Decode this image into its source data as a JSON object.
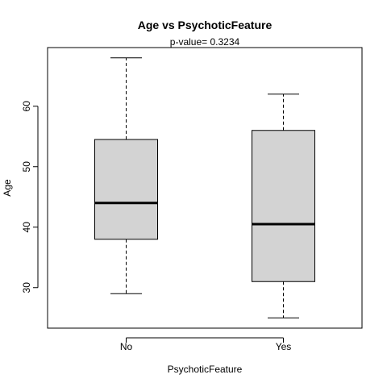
{
  "chart_data": {
    "type": "boxplot",
    "title": "Age  vs  PsychoticFeature",
    "subtitle": "p-value= 0.3234",
    "xlabel": "PsychoticFeature",
    "ylabel": "Age",
    "ylim": [
      23.3,
      69.7
    ],
    "yticks": [
      30,
      40,
      50,
      60
    ],
    "categories": [
      "No",
      "Yes"
    ],
    "boxes": [
      {
        "category": "No",
        "whisker_low": 29,
        "q1": 38,
        "median": 44,
        "q3": 54.5,
        "whisker_high": 68
      },
      {
        "category": "Yes",
        "whisker_low": 25,
        "q1": 31,
        "median": 40.5,
        "q3": 56,
        "whisker_high": 62
      }
    ],
    "box_fill": "#d3d3d3",
    "grid": false
  }
}
